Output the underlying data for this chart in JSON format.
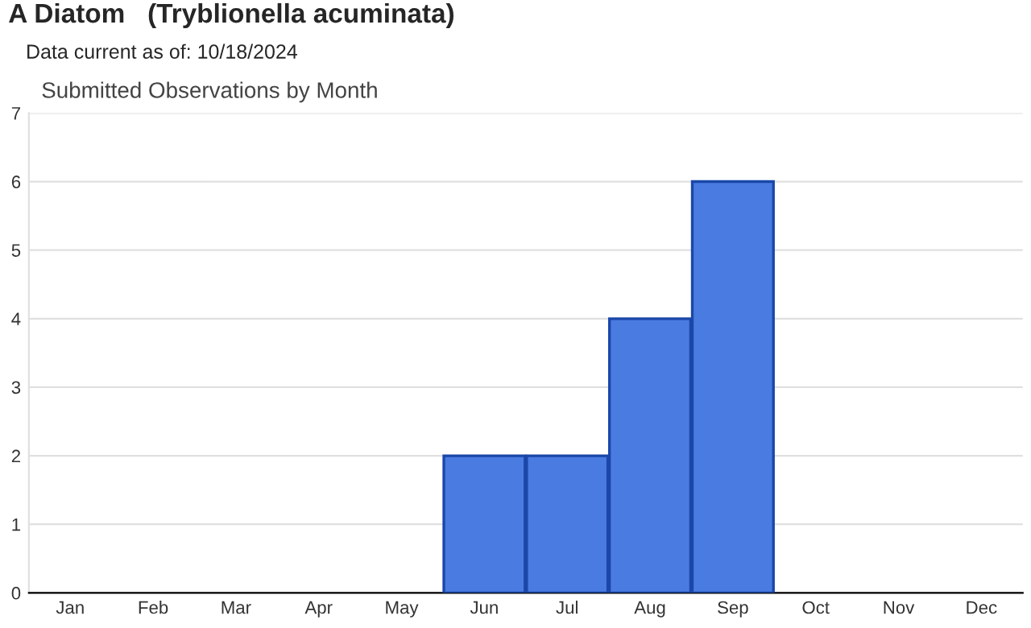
{
  "chart_data": {
    "type": "bar",
    "title": "A Diatom   (Tryblionella acuminata)",
    "subtitle": "Data current as of: 10/18/2024",
    "annotations": [
      "Submitted Observations by Month"
    ],
    "categories": [
      "Jan",
      "Feb",
      "Mar",
      "Apr",
      "May",
      "Jun",
      "Jul",
      "Aug",
      "Sep",
      "Oct",
      "Nov",
      "Dec"
    ],
    "values": [
      0,
      0,
      0,
      0,
      0,
      2,
      2,
      4,
      6,
      0,
      0,
      0
    ],
    "color": "#4a7be0",
    "ylim": [
      0,
      7
    ],
    "yticks": [
      0,
      1,
      2,
      3,
      4,
      5,
      6,
      7
    ],
    "grid": "y",
    "legend": false
  }
}
